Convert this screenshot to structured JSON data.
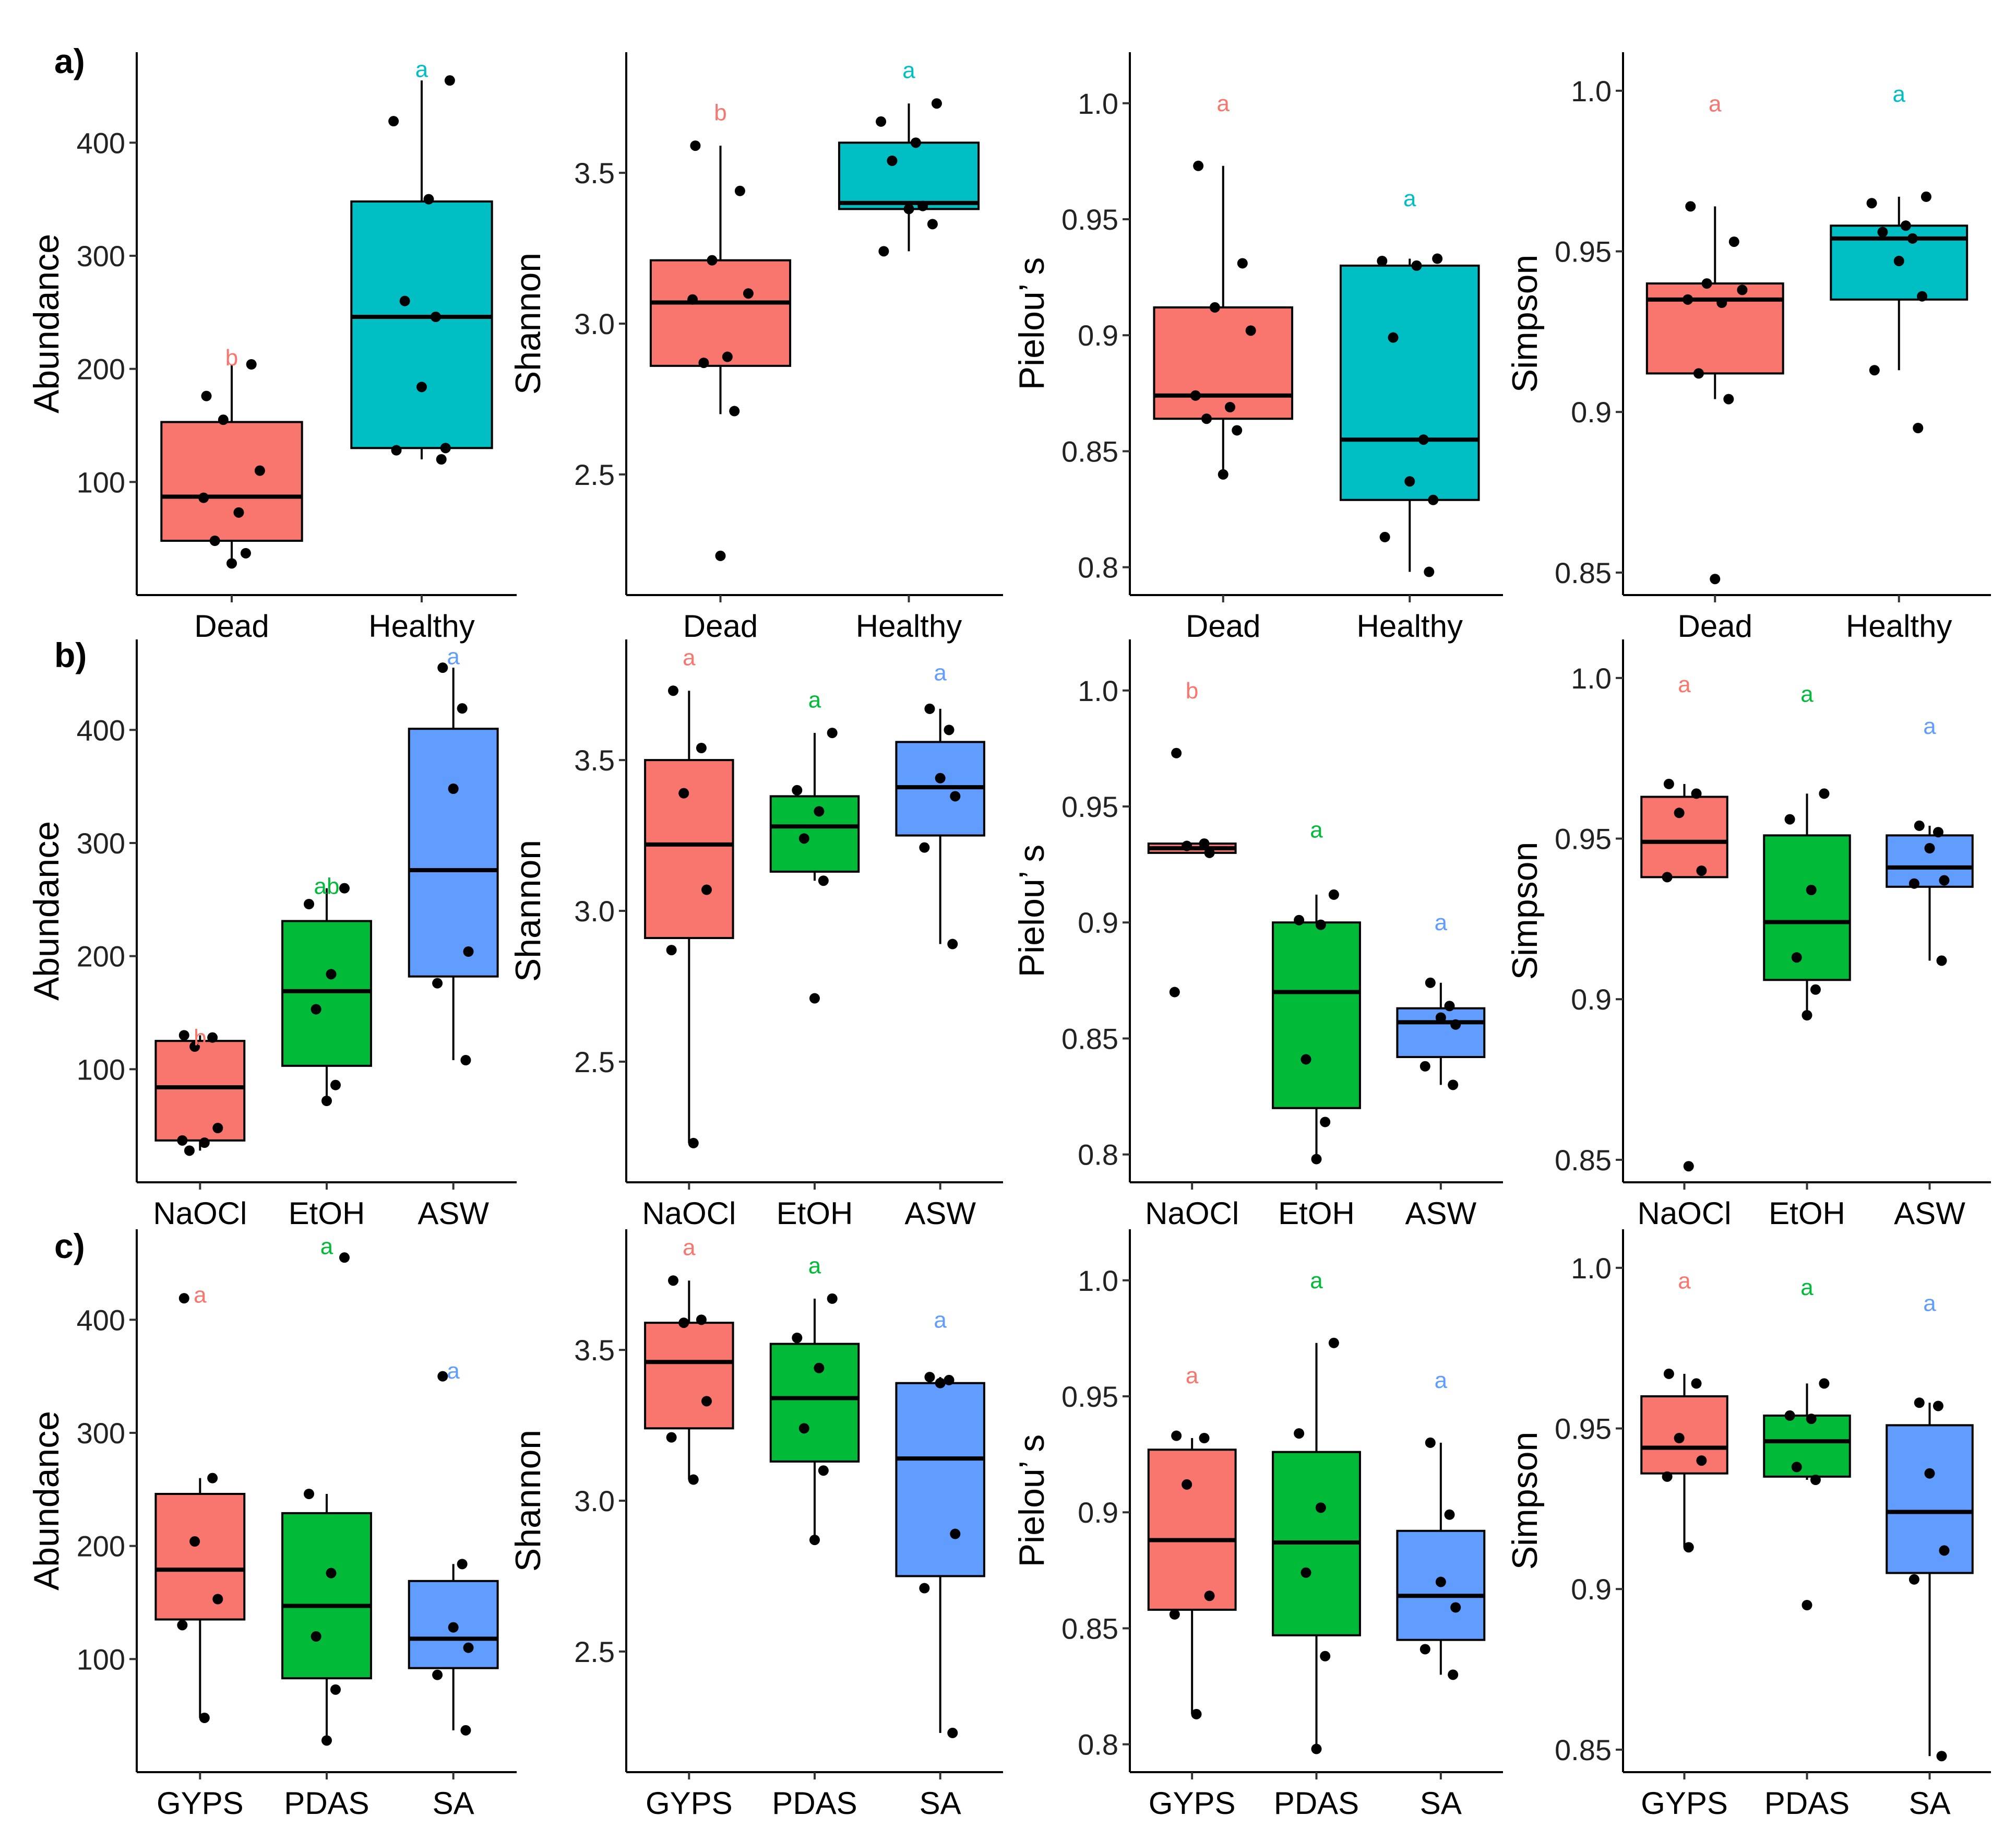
{
  "figure": {
    "row_labels": [
      "a)",
      "b)",
      "c)"
    ]
  },
  "chart_data": [
    {
      "type": "box",
      "row": 0,
      "col": 0,
      "ylabel": "Abundance",
      "ylim": [
        0,
        480
      ],
      "yticks": [
        100,
        200,
        300,
        400
      ],
      "categories": [
        "Dead",
        "Healthy"
      ],
      "colors": [
        "#F8766D",
        "#00BFC4"
      ],
      "groups": [
        {
          "name": "Dead",
          "letter": "b",
          "q1": 48,
          "median": 87,
          "q3": 153,
          "whisker_low": 28,
          "whisker_high": 204,
          "letter_y": 210,
          "points": [
            176,
            204,
            155,
            110,
            86,
            73,
            48,
            37,
            28
          ]
        },
        {
          "name": "Healthy",
          "letter": "a",
          "q1": 130,
          "median": 246,
          "q3": 348,
          "whisker_low": 120,
          "whisker_high": 455,
          "letter_y": 465,
          "points": [
            455,
            419,
            350,
            260,
            246,
            184,
            130,
            128,
            120
          ]
        }
      ]
    },
    {
      "type": "box",
      "row": 0,
      "col": 1,
      "ylabel": "Shannon",
      "ylim": [
        2.1,
        3.9
      ],
      "yticks": [
        2.5,
        3.0,
        3.5
      ],
      "categories": [
        "Dead",
        "Healthy"
      ],
      "colors": [
        "#F8766D",
        "#00BFC4"
      ],
      "groups": [
        {
          "name": "Dead",
          "letter": "b",
          "q1": 2.86,
          "median": 3.07,
          "q3": 3.21,
          "whisker_low": 2.7,
          "whisker_high": 3.59,
          "letter_y": 3.7,
          "points": [
            3.59,
            3.44,
            3.21,
            3.1,
            3.08,
            2.89,
            2.87,
            2.71,
            2.23
          ]
        },
        {
          "name": "Healthy",
          "letter": "a",
          "q1": 3.38,
          "median": 3.4,
          "q3": 3.6,
          "whisker_low": 3.24,
          "whisker_high": 3.73,
          "letter_y": 3.84,
          "points": [
            3.73,
            3.67,
            3.6,
            3.54,
            3.39,
            3.38,
            3.33,
            3.24
          ]
        }
      ]
    },
    {
      "type": "box",
      "row": 0,
      "col": 2,
      "ylabel": "Pielou’ s",
      "ylim": [
        0.788,
        1.022
      ],
      "yticks": [
        0.8,
        0.85,
        0.9,
        0.95,
        1.0
      ],
      "categories": [
        "Dead",
        "Healthy"
      ],
      "colors": [
        "#F8766D",
        "#00BFC4"
      ],
      "groups": [
        {
          "name": "Dead",
          "letter": "a",
          "q1": 0.864,
          "median": 0.874,
          "q3": 0.912,
          "whisker_low": 0.84,
          "whisker_high": 0.973,
          "letter_y": 1.0,
          "points": [
            0.973,
            0.931,
            0.912,
            0.902,
            0.874,
            0.869,
            0.864,
            0.859,
            0.84
          ]
        },
        {
          "name": "Healthy",
          "letter": "a",
          "q1": 0.829,
          "median": 0.855,
          "q3": 0.93,
          "whisker_low": 0.798,
          "whisker_high": 0.933,
          "letter_y": 0.959,
          "points": [
            0.933,
            0.932,
            0.93,
            0.899,
            0.855,
            0.837,
            0.829,
            0.813,
            0.798
          ]
        }
      ]
    },
    {
      "type": "box",
      "row": 0,
      "col": 3,
      "ylabel": "Simpson",
      "ylim": [
        0.843,
        1.012
      ],
      "yticks": [
        0.85,
        0.9,
        0.95,
        1.0
      ],
      "categories": [
        "Dead",
        "Healthy"
      ],
      "colors": [
        "#F8766D",
        "#00BFC4"
      ],
      "groups": [
        {
          "name": "Dead",
          "letter": "a",
          "q1": 0.912,
          "median": 0.935,
          "q3": 0.94,
          "whisker_low": 0.904,
          "whisker_high": 0.964,
          "letter_y": 0.996,
          "points": [
            0.964,
            0.953,
            0.94,
            0.938,
            0.935,
            0.934,
            0.912,
            0.904,
            0.848
          ]
        },
        {
          "name": "Healthy",
          "letter": "a",
          "q1": 0.935,
          "median": 0.954,
          "q3": 0.958,
          "whisker_low": 0.913,
          "whisker_high": 0.967,
          "letter_y": 0.999,
          "points": [
            0.967,
            0.965,
            0.958,
            0.956,
            0.954,
            0.947,
            0.936,
            0.913,
            0.895
          ]
        }
      ]
    },
    {
      "type": "box",
      "row": 1,
      "col": 0,
      "ylabel": "Abundance",
      "ylim": [
        0,
        480
      ],
      "yticks": [
        100,
        200,
        300,
        400
      ],
      "categories": [
        "NaOCl",
        "EtOH",
        "ASW"
      ],
      "colors": [
        "#F8766D",
        "#00BA38",
        "#619CFF"
      ],
      "groups": [
        {
          "name": "NaOCl",
          "letter": "b",
          "q1": 37,
          "median": 84,
          "q3": 125,
          "whisker_low": 28,
          "whisker_high": 130,
          "letter_y": 128,
          "points": [
            130,
            128,
            120,
            48,
            37,
            35,
            28
          ]
        },
        {
          "name": "EtOH",
          "letter": "ab",
          "q1": 103,
          "median": 169,
          "q3": 231,
          "whisker_low": 72,
          "whisker_high": 260,
          "letter_y": 262,
          "points": [
            260,
            246,
            184,
            153,
            86,
            72
          ]
        },
        {
          "name": "ASW",
          "letter": "a",
          "q1": 182,
          "median": 276,
          "q3": 401,
          "whisker_low": 108,
          "whisker_high": 455,
          "letter_y": 465,
          "points": [
            455,
            419,
            348,
            204,
            176,
            108
          ]
        }
      ]
    },
    {
      "type": "box",
      "row": 1,
      "col": 1,
      "ylabel": "Shannon",
      "ylim": [
        2.1,
        3.9
      ],
      "yticks": [
        2.5,
        3.0,
        3.5
      ],
      "categories": [
        "NaOCl",
        "EtOH",
        "ASW"
      ],
      "colors": [
        "#F8766D",
        "#00BA38",
        "#619CFF"
      ],
      "groups": [
        {
          "name": "NaOCl",
          "letter": "a",
          "q1": 2.91,
          "median": 3.22,
          "q3": 3.5,
          "whisker_low": 2.23,
          "whisker_high": 3.73,
          "letter_y": 3.84,
          "points": [
            3.73,
            3.54,
            3.39,
            3.07,
            2.87,
            2.23
          ]
        },
        {
          "name": "EtOH",
          "letter": "a",
          "q1": 3.13,
          "median": 3.28,
          "q3": 3.38,
          "whisker_low": 3.1,
          "whisker_high": 3.59,
          "letter_y": 3.7,
          "points": [
            3.59,
            3.4,
            3.33,
            3.24,
            3.1,
            2.71
          ]
        },
        {
          "name": "ASW",
          "letter": "a",
          "q1": 3.25,
          "median": 3.41,
          "q3": 3.56,
          "whisker_low": 2.89,
          "whisker_high": 3.67,
          "letter_y": 3.79,
          "points": [
            3.67,
            3.6,
            3.44,
            3.38,
            3.21,
            2.89
          ]
        }
      ]
    },
    {
      "type": "box",
      "row": 1,
      "col": 2,
      "ylabel": "Pielou’ s",
      "ylim": [
        0.788,
        1.022
      ],
      "yticks": [
        0.8,
        0.85,
        0.9,
        0.95,
        1.0
      ],
      "categories": [
        "NaOCl",
        "EtOH",
        "ASW"
      ],
      "colors": [
        "#F8766D",
        "#00BA38",
        "#619CFF"
      ],
      "groups": [
        {
          "name": "NaOCl",
          "letter": "b",
          "q1": 0.93,
          "median": 0.932,
          "q3": 0.934,
          "whisker_low": 0.93,
          "whisker_high": 0.934,
          "letter_y": 1.0,
          "points": [
            0.973,
            0.934,
            0.933,
            0.93,
            0.87
          ]
        },
        {
          "name": "EtOH",
          "letter": "a",
          "q1": 0.82,
          "median": 0.87,
          "q3": 0.9,
          "whisker_low": 0.798,
          "whisker_high": 0.912,
          "letter_y": 0.94,
          "points": [
            0.912,
            0.901,
            0.899,
            0.841,
            0.814,
            0.798
          ]
        },
        {
          "name": "ASW",
          "letter": "a",
          "q1": 0.842,
          "median": 0.857,
          "q3": 0.863,
          "whisker_low": 0.83,
          "whisker_high": 0.874,
          "letter_y": 0.9,
          "points": [
            0.874,
            0.864,
            0.859,
            0.856,
            0.838,
            0.83
          ]
        }
      ]
    },
    {
      "type": "box",
      "row": 1,
      "col": 3,
      "ylabel": "Simpson",
      "ylim": [
        0.843,
        1.012
      ],
      "yticks": [
        0.85,
        0.9,
        0.95,
        1.0
      ],
      "categories": [
        "NaOCl",
        "EtOH",
        "ASW"
      ],
      "colors": [
        "#F8766D",
        "#00BA38",
        "#619CFF"
      ],
      "groups": [
        {
          "name": "NaOCl",
          "letter": "a",
          "q1": 0.938,
          "median": 0.949,
          "q3": 0.963,
          "whisker_low": 0.938,
          "whisker_high": 0.967,
          "letter_y": 0.998,
          "points": [
            0.967,
            0.964,
            0.958,
            0.94,
            0.938,
            0.848
          ]
        },
        {
          "name": "EtOH",
          "letter": "a",
          "q1": 0.906,
          "median": 0.924,
          "q3": 0.951,
          "whisker_low": 0.895,
          "whisker_high": 0.964,
          "letter_y": 0.995,
          "points": [
            0.964,
            0.956,
            0.934,
            0.913,
            0.903,
            0.895
          ]
        },
        {
          "name": "ASW",
          "letter": "a",
          "q1": 0.935,
          "median": 0.941,
          "q3": 0.951,
          "whisker_low": 0.912,
          "whisker_high": 0.954,
          "letter_y": 0.985,
          "points": [
            0.954,
            0.952,
            0.947,
            0.937,
            0.936,
            0.912
          ]
        }
      ]
    },
    {
      "type": "box",
      "row": 2,
      "col": 0,
      "ylabel": "Abundance",
      "ylim": [
        0,
        480
      ],
      "yticks": [
        100,
        200,
        300,
        400
      ],
      "categories": [
        "GYPS",
        "PDAS",
        "SA"
      ],
      "colors": [
        "#F8766D",
        "#00BA38",
        "#619CFF"
      ],
      "groups": [
        {
          "name": "GYPS",
          "letter": "a",
          "q1": 135,
          "median": 179,
          "q3": 246,
          "whisker_low": 48,
          "whisker_high": 260,
          "letter_y": 422,
          "points": [
            419,
            260,
            204,
            153,
            130,
            48
          ]
        },
        {
          "name": "PDAS",
          "letter": "a",
          "q1": 83,
          "median": 147,
          "q3": 229,
          "whisker_low": 28,
          "whisker_high": 246,
          "letter_y": 465,
          "points": [
            455,
            246,
            176,
            120,
            73,
            28
          ]
        },
        {
          "name": "SA",
          "letter": "a",
          "q1": 92,
          "median": 118,
          "q3": 169,
          "whisker_low": 37,
          "whisker_high": 184,
          "letter_y": 355,
          "points": [
            350,
            184,
            128,
            110,
            86,
            37
          ]
        }
      ]
    },
    {
      "type": "box",
      "row": 2,
      "col": 1,
      "ylabel": "Shannon",
      "ylim": [
        2.1,
        3.9
      ],
      "yticks": [
        2.5,
        3.0,
        3.5
      ],
      "categories": [
        "GYPS",
        "PDAS",
        "SA"
      ],
      "colors": [
        "#F8766D",
        "#00BA38",
        "#619CFF"
      ],
      "groups": [
        {
          "name": "GYPS",
          "letter": "a",
          "q1": 3.24,
          "median": 3.46,
          "q3": 3.59,
          "whisker_low": 3.07,
          "whisker_high": 3.73,
          "letter_y": 3.84,
          "points": [
            3.73,
            3.6,
            3.59,
            3.33,
            3.21,
            3.07
          ]
        },
        {
          "name": "PDAS",
          "letter": "a",
          "q1": 3.13,
          "median": 3.34,
          "q3": 3.52,
          "whisker_low": 2.87,
          "whisker_high": 3.67,
          "letter_y": 3.78,
          "points": [
            3.67,
            3.54,
            3.44,
            3.24,
            3.1,
            2.87
          ]
        },
        {
          "name": "SA",
          "letter": "a",
          "q1": 2.75,
          "median": 3.14,
          "q3": 3.39,
          "whisker_low": 2.23,
          "whisker_high": 3.41,
          "letter_y": 3.6,
          "points": [
            3.41,
            3.4,
            3.39,
            2.89,
            2.71,
            2.23
          ]
        }
      ]
    },
    {
      "type": "box",
      "row": 2,
      "col": 2,
      "ylabel": "Pielou’ s",
      "ylim": [
        0.788,
        1.022
      ],
      "yticks": [
        0.8,
        0.85,
        0.9,
        0.95,
        1.0
      ],
      "categories": [
        "GYPS",
        "PDAS",
        "SA"
      ],
      "colors": [
        "#F8766D",
        "#00BA38",
        "#619CFF"
      ],
      "groups": [
        {
          "name": "GYPS",
          "letter": "a",
          "q1": 0.858,
          "median": 0.888,
          "q3": 0.927,
          "whisker_low": 0.813,
          "whisker_high": 0.932,
          "letter_y": 0.959,
          "points": [
            0.933,
            0.932,
            0.912,
            0.864,
            0.856,
            0.813
          ]
        },
        {
          "name": "PDAS",
          "letter": "a",
          "q1": 0.847,
          "median": 0.887,
          "q3": 0.926,
          "whisker_low": 0.798,
          "whisker_high": 0.973,
          "letter_y": 1.0,
          "points": [
            0.973,
            0.934,
            0.902,
            0.874,
            0.838,
            0.798
          ]
        },
        {
          "name": "SA",
          "letter": "a",
          "q1": 0.845,
          "median": 0.864,
          "q3": 0.892,
          "whisker_low": 0.83,
          "whisker_high": 0.93,
          "letter_y": 0.957,
          "points": [
            0.93,
            0.899,
            0.87,
            0.859,
            0.841,
            0.83
          ]
        }
      ]
    },
    {
      "type": "box",
      "row": 2,
      "col": 3,
      "ylabel": "Simpson",
      "ylim": [
        0.843,
        1.012
      ],
      "yticks": [
        0.85,
        0.9,
        0.95,
        1.0
      ],
      "categories": [
        "GYPS",
        "PDAS",
        "SA"
      ],
      "colors": [
        "#F8766D",
        "#00BA38",
        "#619CFF"
      ],
      "groups": [
        {
          "name": "GYPS",
          "letter": "a",
          "q1": 0.936,
          "median": 0.944,
          "q3": 0.96,
          "whisker_low": 0.913,
          "whisker_high": 0.967,
          "letter_y": 0.996,
          "points": [
            0.967,
            0.964,
            0.947,
            0.94,
            0.935,
            0.913
          ]
        },
        {
          "name": "PDAS",
          "letter": "a",
          "q1": 0.935,
          "median": 0.946,
          "q3": 0.954,
          "whisker_low": 0.934,
          "whisker_high": 0.964,
          "letter_y": 0.994,
          "points": [
            0.964,
            0.954,
            0.953,
            0.938,
            0.934,
            0.895
          ]
        },
        {
          "name": "SA",
          "letter": "a",
          "q1": 0.905,
          "median": 0.924,
          "q3": 0.951,
          "whisker_low": 0.848,
          "whisker_high": 0.958,
          "letter_y": 0.989,
          "points": [
            0.958,
            0.957,
            0.936,
            0.912,
            0.903,
            0.848
          ]
        }
      ]
    }
  ]
}
